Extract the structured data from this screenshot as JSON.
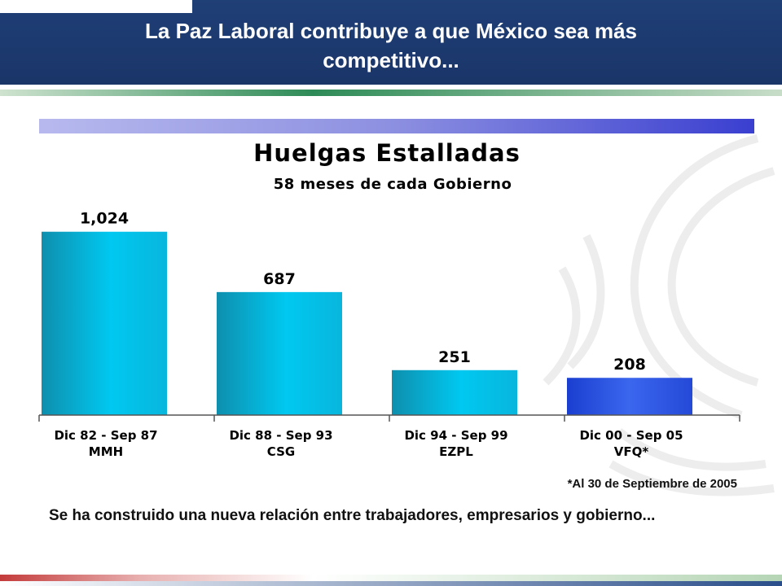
{
  "slide": {
    "title_line1": "La Paz Laboral contribuye a que México sea más",
    "title_line2": "competitivo...",
    "footnote": "*Al 30 de Septiembre de 2005",
    "body_text": "Se ha construido una nueva relación entre trabajadores, empresarios y gobierno..."
  },
  "colors": {
    "header": "#1f3f77",
    "bar_cyan": "#00c8f0",
    "bar_highlight": "#2b55e0"
  },
  "chart_data": {
    "type": "bar",
    "title": "Huelgas Estalladas",
    "subtitle": "58 meses de cada Gobierno",
    "categories": [
      {
        "period": "Dic 82 - Sep 87",
        "name": "MMH"
      },
      {
        "period": "Dic 88 - Sep 93",
        "name": "CSG"
      },
      {
        "period": "Dic 94 - Sep 99",
        "name": "EZPL"
      },
      {
        "period": "Dic 00 - Sep 05",
        "name": "VFQ*"
      }
    ],
    "values": [
      1024,
      687,
      251,
      208
    ],
    "value_labels": [
      "1,024",
      "687",
      "251",
      "208"
    ],
    "highlight_index": 3,
    "ylim": [
      0,
      1100
    ],
    "grid": false,
    "legend": "none"
  }
}
